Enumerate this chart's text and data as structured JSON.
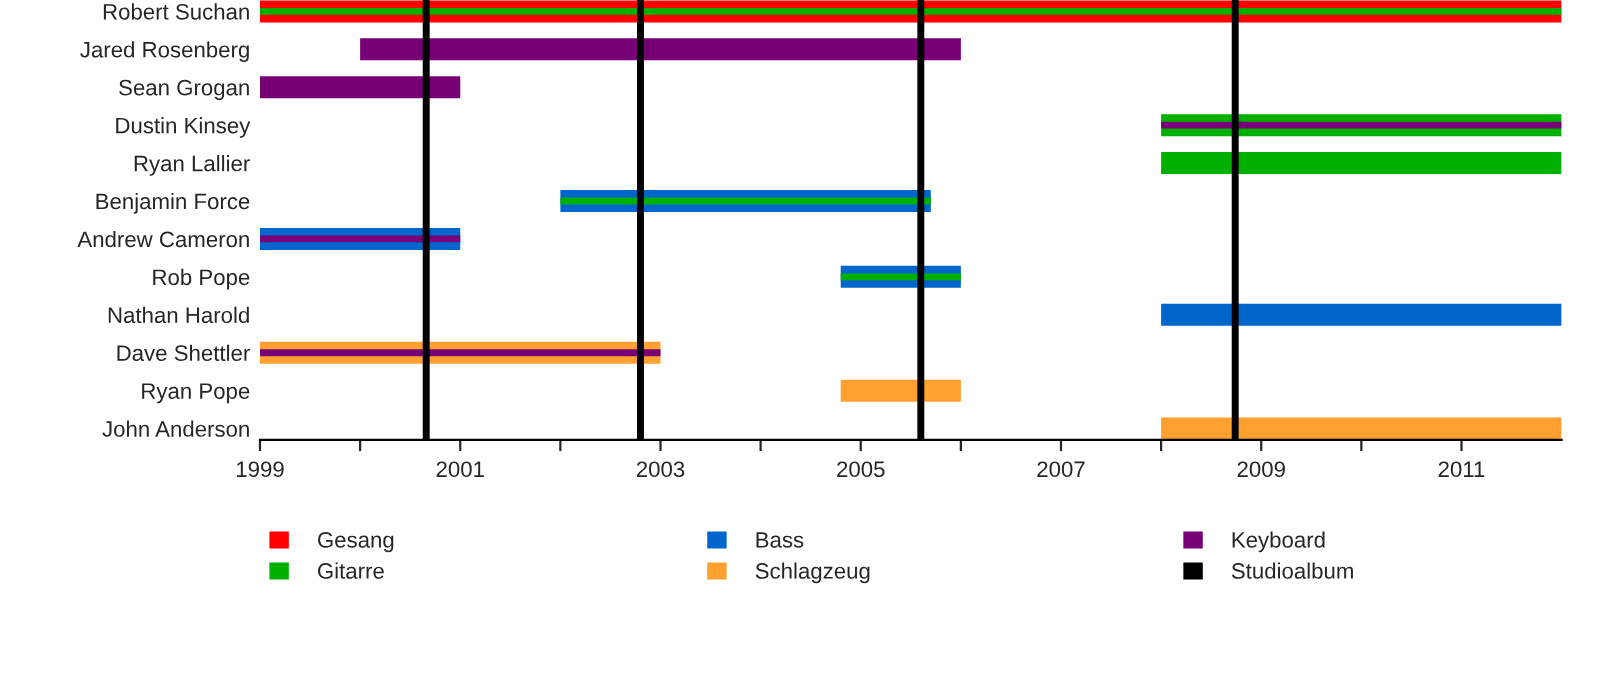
{
  "chart_data": {
    "type": "bar",
    "orientation": "horizontal",
    "categories": [
      "Robert Suchan",
      "Jared Rosenberg",
      "Sean Grogan",
      "Dustin Kinsey",
      "Ryan Lallier",
      "Benjamin Force",
      "Andrew Cameron",
      "Rob Pope",
      "Nathan Harold",
      "Dave Shettler",
      "Ryan Pope",
      "John Anderson"
    ],
    "series": [
      {
        "name": "Gesang",
        "color": "#ff0000",
        "base": [
          1999,
          null,
          null,
          null,
          null,
          null,
          null,
          null,
          null,
          null,
          null,
          null
        ],
        "values": [
          13,
          null,
          null,
          null,
          null,
          null,
          null,
          null,
          null,
          null,
          null,
          null
        ]
      },
      {
        "name": "Gitarre",
        "color": "#00b000",
        "base": [
          null,
          null,
          null,
          2008,
          2008,
          null,
          null,
          null,
          null,
          null,
          null,
          null
        ],
        "values": [
          null,
          null,
          null,
          4,
          4,
          null,
          null,
          null,
          null,
          null,
          null,
          null
        ]
      },
      {
        "name": "Bass",
        "color": "#0066cc",
        "base": [
          null,
          null,
          null,
          null,
          null,
          2002,
          1999,
          2004.8,
          2008,
          null,
          null,
          null
        ],
        "values": [
          null,
          null,
          null,
          null,
          null,
          3.7,
          2,
          1.2,
          4,
          null,
          null,
          null
        ]
      },
      {
        "name": "Schlagzeug",
        "color": "#ffa030",
        "base": [
          null,
          null,
          null,
          null,
          null,
          null,
          null,
          null,
          null,
          1999,
          2004.8,
          2008
        ],
        "values": [
          null,
          null,
          null,
          null,
          null,
          null,
          null,
          null,
          null,
          4,
          1.2,
          4
        ]
      },
      {
        "name": "Keyboard",
        "color": "#770077",
        "base": [
          null,
          2000,
          1999,
          null,
          null,
          null,
          null,
          null,
          null,
          null,
          null,
          null
        ],
        "values": [
          null,
          6,
          2,
          null,
          null,
          null,
          null,
          null,
          null,
          null,
          null,
          null
        ]
      },
      {
        "color": "#00b000",
        "base": [
          1999,
          null,
          null,
          null,
          null,
          2002,
          null,
          2004.8,
          null,
          null,
          null,
          null
        ],
        "values": [
          13,
          null,
          null,
          null,
          null,
          3.7,
          null,
          1.2,
          null,
          null,
          null,
          null
        ]
      },
      {
        "color": "#770077",
        "base": [
          null,
          null,
          null,
          2008,
          null,
          null,
          1999,
          null,
          null,
          1999,
          null,
          null
        ],
        "values": [
          null,
          null,
          null,
          4,
          null,
          null,
          2,
          null,
          null,
          4,
          null,
          null
        ]
      }
    ],
    "ref_lines": [
      {
        "axis": "x",
        "value": 2000.66,
        "color": "#000000",
        "label": "Studioalbum"
      },
      {
        "axis": "x",
        "value": 2002.8,
        "color": "#000000"
      },
      {
        "axis": "x",
        "value": 2005.6,
        "color": "#000000"
      },
      {
        "axis": "x",
        "value": 2008.74,
        "color": "#000000"
      }
    ],
    "xlim": [
      1999,
      2012
    ],
    "xticks": [
      1999,
      {
        "value": 2000,
        "label": null
      },
      2001,
      {
        "value": 2002,
        "label": null
      },
      2003,
      {
        "value": 2004,
        "label": null
      },
      2005,
      {
        "value": 2006,
        "label": null
      },
      2007,
      {
        "value": 2008,
        "label": null
      },
      2009,
      {
        "value": 2010,
        "label": null
      },
      2011
    ],
    "grid": false,
    "legend": "bottom"
  }
}
